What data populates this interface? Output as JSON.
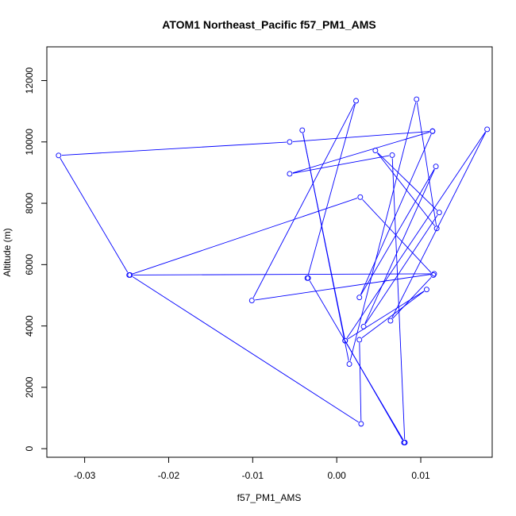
{
  "chart_data": {
    "type": "line",
    "title": "ATOM1 Northeast_Pacific f57_PM1_AMS",
    "xlabel": "f57_PM1_AMS",
    "ylabel": "Altitude (m)",
    "xlim": [
      -0.0345,
      0.0185
    ],
    "ylim": [
      -280,
      13100
    ],
    "xticks": [
      -0.03,
      -0.02,
      -0.01,
      0.0,
      0.01
    ],
    "xtick_labels": [
      "-0.03",
      "-0.02",
      "-0.01",
      "0.00",
      "0.01"
    ],
    "yticks": [
      0,
      2000,
      4000,
      6000,
      8000,
      10000,
      12000
    ],
    "ytick_labels": [
      "0",
      "2000",
      "4000",
      "6000",
      "8000",
      "10000",
      "12000"
    ],
    "grid": false,
    "series": [
      {
        "color": "#0000ff",
        "marker": "open-circle",
        "points": [
          {
            "x": 0.008,
            "y": 200
          },
          {
            "x": 0.001,
            "y": 3520
          },
          {
            "x": -0.0041,
            "y": 10380
          },
          {
            "x": 0.0015,
            "y": 2760
          },
          {
            "x": 0.0095,
            "y": 11390
          },
          {
            "x": 0.0119,
            "y": 7180
          },
          {
            "x": 0.0046,
            "y": 9720
          },
          {
            "x": 0.0122,
            "y": 7700
          },
          {
            "x": 0.0032,
            "y": 3980
          },
          {
            "x": 0.0118,
            "y": 9200
          },
          {
            "x": 0.0027,
            "y": 4930
          },
          {
            "x": 0.0114,
            "y": 10350
          },
          {
            "x": -0.0056,
            "y": 8960
          },
          {
            "x": 0.0066,
            "y": 9570
          },
          {
            "x": 0.0081,
            "y": 200
          },
          {
            "x": 0.0081,
            "y": 200
          },
          {
            "x": -0.0034,
            "y": 5560
          },
          {
            "x": -0.0035,
            "y": 5560
          },
          {
            "x": 0.0023,
            "y": 11340
          },
          {
            "x": -0.0101,
            "y": 4830
          },
          {
            "x": 0.0116,
            "y": 5700
          },
          {
            "x": -0.0246,
            "y": 5660
          },
          {
            "x": 0.0029,
            "y": 810
          },
          {
            "x": 0.0027,
            "y": 3550
          },
          {
            "x": 0.0107,
            "y": 5190
          },
          {
            "x": 0.001,
            "y": 3520
          },
          {
            "x": 0.0179,
            "y": 10410
          },
          {
            "x": 0.0064,
            "y": 4170
          },
          {
            "x": 0.0115,
            "y": 5660
          },
          {
            "x": 0.0028,
            "y": 8200
          },
          {
            "x": -0.0247,
            "y": 5660
          },
          {
            "x": -0.0331,
            "y": 9560
          },
          {
            "x": -0.0056,
            "y": 10000
          },
          {
            "x": 0.0114,
            "y": 10350
          }
        ]
      }
    ]
  }
}
